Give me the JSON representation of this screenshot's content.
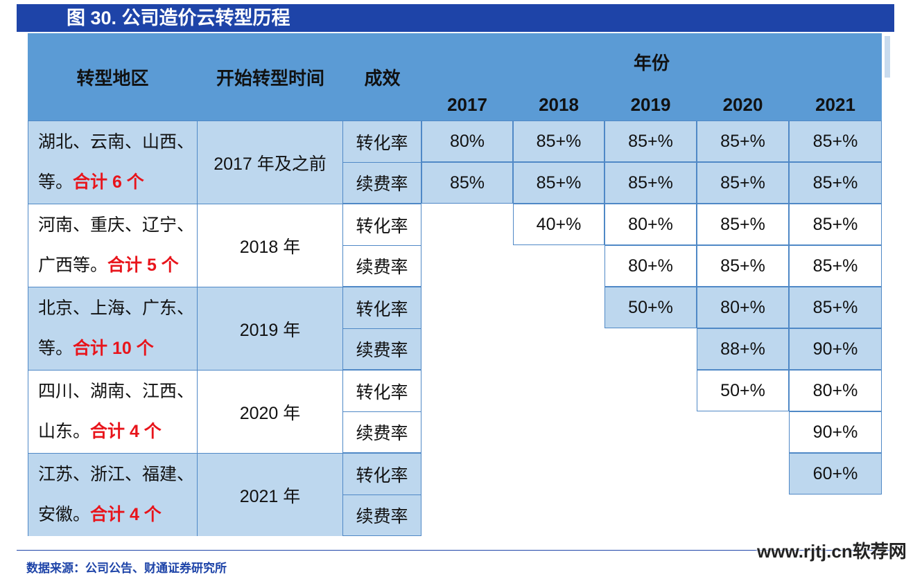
{
  "title": "图 30. 公司造价云转型历程",
  "headers": {
    "region": "转型地区",
    "start": "开始转型时间",
    "effect": "成效",
    "year_group": "年份",
    "years": [
      "2017",
      "2018",
      "2019",
      "2020",
      "2021"
    ]
  },
  "groups": [
    {
      "region_line1": "湖北、云南、山西、",
      "region_line2_prefix": "等。",
      "region_line2_total": "合计 6 个",
      "start": "2017 年及之前",
      "rows": [
        {
          "metric": "转化率",
          "values": [
            "80%",
            "85+%",
            "85+%",
            "85+%",
            "85+%"
          ]
        },
        {
          "metric": "续费率",
          "values": [
            "85%",
            "85+%",
            "85+%",
            "85+%",
            "85+%"
          ]
        }
      ]
    },
    {
      "region_line1": "河南、重庆、辽宁、",
      "region_line2_prefix": "广西等。",
      "region_line2_total": "合计 5 个",
      "start": "2018 年",
      "rows": [
        {
          "metric": "转化率",
          "values": [
            "",
            "40+%",
            "80+%",
            "85+%",
            "85+%"
          ]
        },
        {
          "metric": "续费率",
          "values": [
            "",
            "",
            "80+%",
            "85+%",
            "85+%"
          ]
        }
      ]
    },
    {
      "region_line1": "北京、上海、广东、",
      "region_line2_prefix": "等。",
      "region_line2_total": "合计 10 个",
      "start": "2019 年",
      "rows": [
        {
          "metric": "转化率",
          "values": [
            "",
            "",
            "50+%",
            "80+%",
            "85+%"
          ]
        },
        {
          "metric": "续费率",
          "values": [
            "",
            "",
            "",
            "88+%",
            "90+%"
          ]
        }
      ]
    },
    {
      "region_line1": "四川、湖南、江西、",
      "region_line2_prefix": "山东。",
      "region_line2_total": "合计 4 个",
      "start": "2020 年",
      "rows": [
        {
          "metric": "转化率",
          "values": [
            "",
            "",
            "",
            "50+%",
            "80+%"
          ]
        },
        {
          "metric": "续费率",
          "values": [
            "",
            "",
            "",
            "",
            "90+%"
          ]
        }
      ]
    },
    {
      "region_line1": "江苏、浙江、福建、",
      "region_line2_prefix": "安徽。",
      "region_line2_total": "合计 4 个",
      "start": "2021 年",
      "rows": [
        {
          "metric": "转化率",
          "values": [
            "",
            "",
            "",
            "",
            "60+%"
          ]
        },
        {
          "metric": "续费率",
          "values": [
            "",
            "",
            "",
            "",
            ""
          ]
        }
      ]
    }
  ],
  "source": "数据来源：公司公告、财通证券研究所",
  "watermark": "www.rjtj.cn软荐网",
  "colors": {
    "header": "#5b9bd5",
    "shade": "#bdd7ee",
    "title_bar": "#1e44a8",
    "total_red": "#e8141b"
  }
}
